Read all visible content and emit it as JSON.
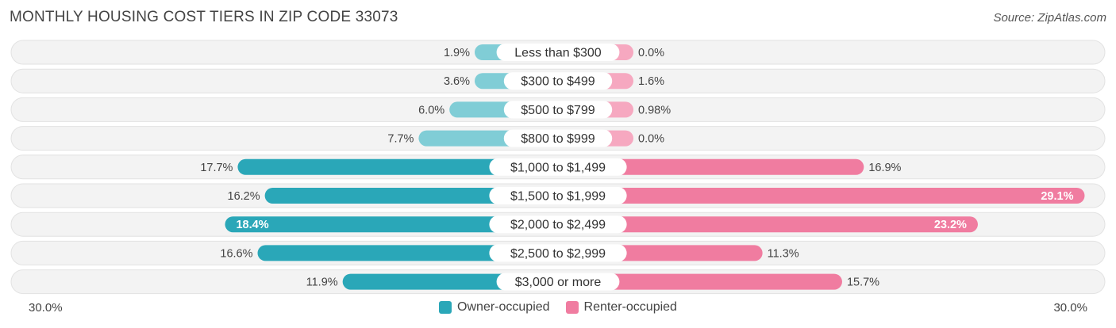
{
  "title": "MONTHLY HOUSING COST TIERS IN ZIP CODE 33073",
  "source": "Source: ZipAtlas.com",
  "colors": {
    "owner": "#2aa7b8",
    "owner_light": "#80cdd6",
    "renter": "#f07ca0",
    "renter_light": "#f6a8c0",
    "row_bg": "#efefef"
  },
  "chart_data": {
    "type": "bar",
    "orientation": "horizontal-diverging",
    "categories": [
      "Less than $300",
      "$300 to $499",
      "$500 to $799",
      "$800 to $999",
      "$1,000 to $1,499",
      "$1,500 to $1,999",
      "$2,000 to $2,499",
      "$2,500 to $2,999",
      "$3,000 or more"
    ],
    "series": [
      {
        "name": "Owner-occupied",
        "values": [
          1.9,
          3.6,
          6.0,
          7.7,
          17.7,
          16.2,
          18.4,
          16.6,
          11.9
        ],
        "labels": [
          "1.9%",
          "3.6%",
          "6.0%",
          "7.7%",
          "17.7%",
          "16.2%",
          "18.4%",
          "16.6%",
          "11.9%"
        ]
      },
      {
        "name": "Renter-occupied",
        "values": [
          0.0,
          1.6,
          0.98,
          0.0,
          16.9,
          29.1,
          23.2,
          11.3,
          15.7
        ],
        "labels": [
          "0.0%",
          "1.6%",
          "0.98%",
          "0.0%",
          "16.9%",
          "29.1%",
          "23.2%",
          "11.3%",
          "15.7%"
        ]
      }
    ],
    "xlim": [
      -30,
      30
    ],
    "axis_labels": {
      "left": "30.0%",
      "right": "30.0%"
    },
    "legend_position": "bottom-center"
  }
}
